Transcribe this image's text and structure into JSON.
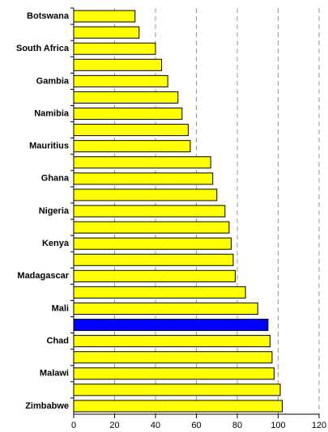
{
  "chart_data": {
    "type": "barh",
    "categories": [
      "Botswana",
      null,
      "South Africa",
      null,
      "Gambia",
      null,
      "Namibia",
      null,
      "Mauritius",
      null,
      "Ghana",
      null,
      "Nigeria",
      null,
      "Kenya",
      null,
      "Madagascar",
      null,
      "Mali",
      null,
      "Chad",
      null,
      "Malawi",
      null,
      "Zimbabwe"
    ],
    "values": [
      30,
      32,
      40,
      43,
      46,
      51,
      53,
      56,
      57,
      67,
      68,
      70,
      74,
      76,
      77,
      78,
      79,
      84,
      90,
      95,
      96,
      97,
      98,
      101,
      102
    ],
    "colors": [
      "#ffff00",
      "#ffff00",
      "#ffff00",
      "#ffff00",
      "#ffff00",
      "#ffff00",
      "#ffff00",
      "#ffff00",
      "#ffff00",
      "#ffff00",
      "#ffff00",
      "#ffff00",
      "#ffff00",
      "#ffff00",
      "#ffff00",
      "#ffff00",
      "#ffff00",
      "#ffff00",
      "#ffff00",
      "#0000ff",
      "#ffff00",
      "#ffff00",
      "#ffff00",
      "#ffff00",
      "#ffff00"
    ],
    "xlim": [
      0,
      120
    ],
    "xticks": [
      0,
      20,
      40,
      60,
      80,
      100,
      120
    ],
    "grid": true
  }
}
